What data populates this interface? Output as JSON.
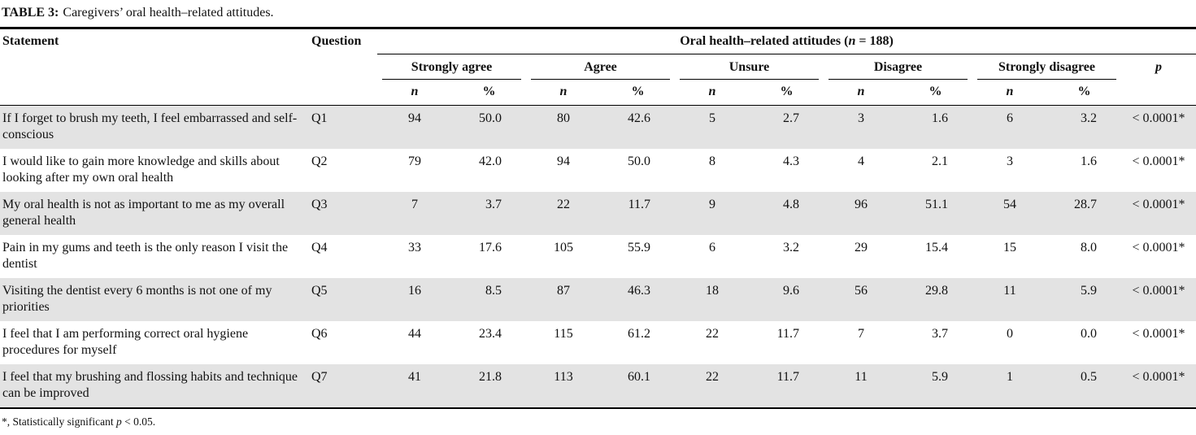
{
  "caption": {
    "label": "TABLE 3:",
    "text": "Caregivers’ oral health–related attitudes."
  },
  "table": {
    "col_statement": "Statement",
    "col_question": "Question",
    "group_main": {
      "prefix": "Oral health–related attitudes (",
      "n_symbol": "n",
      "suffix": " = 188)"
    },
    "groups": [
      "Strongly agree",
      "Agree",
      "Unsure",
      "Disagree",
      "Strongly disagree"
    ],
    "p_header": "p",
    "sub_n": "n",
    "sub_pct": "%",
    "rows": [
      {
        "statement": "If I forget to brush my teeth, I feel embarrassed and self-conscious",
        "question": "Q1",
        "values": [
          "94",
          "50.0",
          "80",
          "42.6",
          "5",
          "2.7",
          "3",
          "1.6",
          "6",
          "3.2"
        ],
        "p": "< 0.0001*"
      },
      {
        "statement": "I would like to gain more knowledge and skills about looking after my own oral health",
        "question": "Q2",
        "values": [
          "79",
          "42.0",
          "94",
          "50.0",
          "8",
          "4.3",
          "4",
          "2.1",
          "3",
          "1.6"
        ],
        "p": "< 0.0001*"
      },
      {
        "statement": "My oral health is not as important to me as my overall general health",
        "question": "Q3",
        "values": [
          "7",
          "3.7",
          "22",
          "11.7",
          "9",
          "4.8",
          "96",
          "51.1",
          "54",
          "28.7"
        ],
        "p": "< 0.0001*"
      },
      {
        "statement": "Pain in my gums and teeth is the only reason I visit the dentist",
        "question": "Q4",
        "values": [
          "33",
          "17.6",
          "105",
          "55.9",
          "6",
          "3.2",
          "29",
          "15.4",
          "15",
          "8.0"
        ],
        "p": "< 0.0001*"
      },
      {
        "statement": "Visiting the dentist every 6 months is not one of my priorities",
        "question": "Q5",
        "values": [
          "16",
          "8.5",
          "87",
          "46.3",
          "18",
          "9.6",
          "56",
          "29.8",
          "11",
          "5.9"
        ],
        "p": "< 0.0001*"
      },
      {
        "statement": "I feel that I am performing correct oral hygiene procedures for myself",
        "question": "Q6",
        "values": [
          "44",
          "23.4",
          "115",
          "61.2",
          "22",
          "11.7",
          "7",
          "3.7",
          "0",
          "0.0"
        ],
        "p": "< 0.0001*"
      },
      {
        "statement": "I feel that my brushing and flossing habits and technique can be improved",
        "question": "Q7",
        "values": [
          "41",
          "21.8",
          "113",
          "60.1",
          "22",
          "11.7",
          "11",
          "5.9",
          "1",
          "0.5"
        ],
        "p": "< 0.0001*"
      }
    ]
  },
  "footnote": {
    "prefix": "*, Statistically significant ",
    "p_symbol": "p",
    "suffix": " < 0.05."
  },
  "colors": {
    "row_shade": "#e3e3e3",
    "rule": "#000000"
  }
}
